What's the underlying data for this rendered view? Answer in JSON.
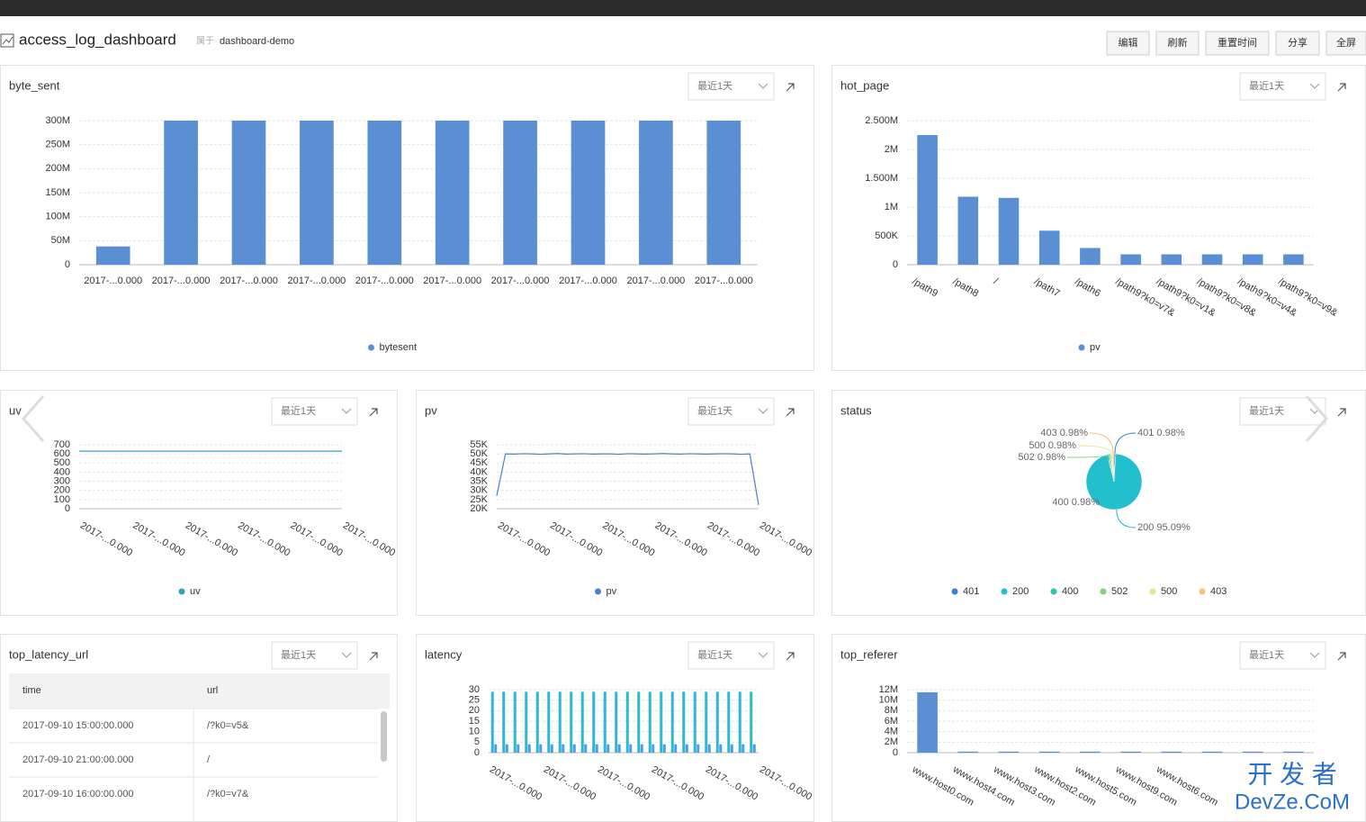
{
  "header": {
    "title": "access_log_dashboard",
    "belongs": "属于",
    "project": "dashboard-demo"
  },
  "buttons": [
    "编辑",
    "刷新",
    "重置时间",
    "分享",
    "全屏"
  ],
  "watermark": [
    "开 发 者",
    "DevZe.CoM"
  ],
  "chart_data": [
    {
      "type": "bar",
      "title": "byte_sent",
      "time_range": "最近1天",
      "categories": [
        "2017-...0.000",
        "2017-...0.000",
        "2017-...0.000",
        "2017-...0.000",
        "2017-...0.000",
        "2017-...0.000",
        "2017-...0.000",
        "2017-...0.000",
        "2017-...0.000",
        "2017-...0.000"
      ],
      "series": [
        {
          "name": "bytesent",
          "color": "#5b8fd4",
          "values": [
            38000000,
            300000000,
            300000000,
            300000000,
            300000000,
            300000000,
            300000000,
            300000000,
            300000000,
            300000000
          ]
        }
      ],
      "ylim": [
        0,
        300000000
      ],
      "yticks": [
        0,
        {
          "value": 50000000,
          "label": "50M"
        },
        {
          "value": 100000000,
          "label": "100M"
        },
        {
          "value": 150000000,
          "label": "150M"
        },
        {
          "value": 200000000,
          "label": "200M"
        },
        {
          "value": 250000000,
          "label": "250M"
        },
        {
          "value": 300000000,
          "label": "300M"
        }
      ],
      "grid": true
    },
    {
      "type": "bar",
      "title": "hot_page",
      "time_range": "最近1天",
      "categories": [
        "/path9",
        "/path8",
        "/",
        "/path7",
        "/path6",
        "/path9?k0=v7&",
        "/path9?k0=v1&",
        "/path9?k0=v8&",
        "/path9?k0=v4&",
        "/path9?k0=v9&"
      ],
      "series": [
        {
          "name": "pv",
          "color": "#5b8fd4",
          "values": [
            2250000,
            1180000,
            1160000,
            590000,
            290000,
            180000,
            180000,
            180000,
            180000,
            180000
          ]
        }
      ],
      "ylim": [
        0,
        2500000
      ],
      "yticks": [
        0,
        {
          "value": 500000,
          "label": "500K"
        },
        {
          "value": 1000000,
          "label": "1M"
        },
        {
          "value": 1500000,
          "label": "1.500M"
        },
        {
          "value": 2000000,
          "label": "2M"
        },
        {
          "value": 2500000,
          "label": "2.500M"
        }
      ],
      "grid": true
    },
    {
      "type": "line",
      "title": "uv",
      "time_range": "最近1天",
      "xtick_labels": [
        "2017-...0.000",
        "2017-...0.000",
        "2017-...0.000",
        "2017-...0.000",
        "2017-...0.000",
        "2017-...0.000"
      ],
      "series": [
        {
          "name": "uv",
          "color": "#3b9fb8",
          "values": [
            630,
            630,
            630,
            630,
            630,
            630,
            630,
            630,
            630,
            630,
            630,
            630,
            630,
            630,
            630,
            630,
            630,
            630,
            630,
            630,
            630,
            630,
            630,
            630
          ]
        }
      ],
      "ylim": [
        0,
        700
      ],
      "yticks": [
        0,
        100,
        200,
        300,
        400,
        500,
        600,
        700
      ],
      "grid": true
    },
    {
      "type": "line",
      "title": "pv",
      "time_range": "最近1天",
      "xtick_labels": [
        "2017-...0.000",
        "2017-...0.000",
        "2017-...0.000",
        "2017-...0.000",
        "2017-...0.000",
        "2017-...0.000"
      ],
      "series": [
        {
          "name": "pv",
          "color": "#4a7fd0",
          "values": [
            27000,
            50000,
            49900,
            50100,
            50000,
            49800,
            50000,
            50200,
            49900,
            50000,
            50100,
            49900,
            50000,
            50000,
            49800,
            50100,
            50000,
            49900,
            50000,
            50200,
            50000,
            49900,
            50100,
            50000,
            49900,
            50000,
            50100,
            50000,
            49800,
            50000,
            22000
          ]
        }
      ],
      "ylim": [
        20000,
        55000
      ],
      "yticks": [
        {
          "value": 20000,
          "label": "20K"
        },
        {
          "value": 25000,
          "label": "25K"
        },
        {
          "value": 30000,
          "label": "30K"
        },
        {
          "value": 35000,
          "label": "35K"
        },
        {
          "value": 40000,
          "label": "40K"
        },
        {
          "value": 45000,
          "label": "45K"
        },
        {
          "value": 50000,
          "label": "50K"
        },
        {
          "value": 55000,
          "label": "55K"
        }
      ],
      "grid": true
    },
    {
      "type": "pie",
      "title": "status",
      "time_range": "最近1天",
      "categories": [
        "401",
        "200",
        "400",
        "502",
        "500",
        "403"
      ],
      "values": [
        0.98,
        95.09,
        0.98,
        0.98,
        0.98,
        0.98
      ],
      "value_labels": [
        "0.98%",
        "95.09%",
        "0.98%",
        "0.98%",
        "0.98%",
        "0.98%"
      ],
      "colors": [
        "#3b7dd8",
        "#22bfcf",
        "#2cc6a8",
        "#7fd37f",
        "#e6e68a",
        "#f5c27a"
      ]
    },
    {
      "type": "bar",
      "title": "latency",
      "time_range": "最近1天",
      "xtick_labels": [
        "2017-...0.000",
        "2017-...0.000",
        "2017-...0.000",
        "2017-...0.000",
        "2017-...0.000",
        "2017-...0.000"
      ],
      "series": [
        {
          "color": "#2cb8d4",
          "values": [
            29,
            29,
            29,
            29,
            29,
            29,
            29,
            29,
            29,
            29,
            29,
            29,
            29,
            29,
            29,
            29,
            29,
            29,
            29,
            29,
            29,
            29,
            29,
            29
          ]
        },
        {
          "color": "#4a9fe0",
          "values": [
            4,
            4,
            4,
            4,
            4,
            4,
            4,
            4,
            4,
            4,
            4,
            4,
            4,
            4,
            4,
            4,
            4,
            4,
            4,
            4,
            4,
            4,
            4,
            4
          ]
        }
      ],
      "ylim": [
        0,
        30
      ],
      "yticks": [
        0,
        5,
        10,
        15,
        20,
        25,
        30
      ],
      "grid": true
    },
    {
      "type": "bar",
      "title": "top_referer",
      "time_range": "最近1天",
      "categories": [
        "www.host0.com",
        "www.host4.com",
        "www.host3.com",
        "www.host2.com",
        "www.host5.com",
        "www.host9.com",
        "www.host6.com",
        null,
        null,
        null
      ],
      "series": [
        {
          "color": "#5b8fd4",
          "values": [
            11500000,
            200000,
            200000,
            200000,
            200000,
            200000,
            200000,
            200000,
            200000,
            200000
          ]
        }
      ],
      "ylim": [
        0,
        12000000
      ],
      "yticks": [
        0,
        {
          "value": 2000000,
          "label": "2M"
        },
        {
          "value": 4000000,
          "label": "4M"
        },
        {
          "value": 6000000,
          "label": "6M"
        },
        {
          "value": 8000000,
          "label": "8M"
        },
        {
          "value": 10000000,
          "label": "10M"
        },
        {
          "value": 12000000,
          "label": "12M"
        }
      ],
      "grid": true
    }
  ],
  "table": {
    "title": "top_latency_url",
    "time_range": "最近1天",
    "columns": [
      "time",
      "url"
    ],
    "rows": [
      [
        "2017-09-10 15:00:00.000",
        "/?k0=v5&"
      ],
      [
        "2017-09-10 21:00:00.000",
        "/"
      ],
      [
        "2017-09-10 16:00:00.000",
        "/?k0=v7&"
      ]
    ]
  }
}
